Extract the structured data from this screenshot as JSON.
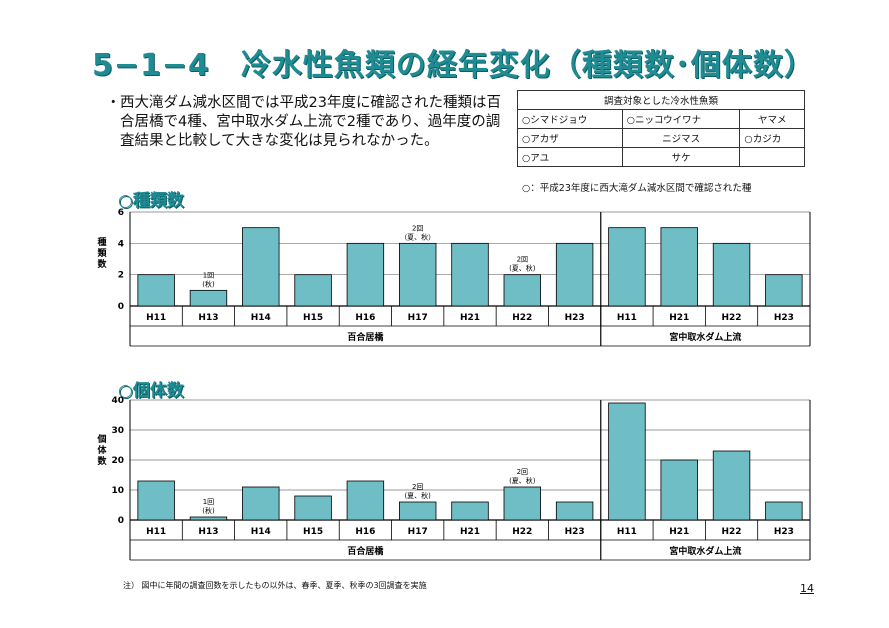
{
  "title": "5−1−4　冷水性魚類の経年変化（種類数･個体数）",
  "bullet": {
    "marker": "・",
    "text": "西大滝ダム減水区間では平成23年度に確認された種類は百合居橋で4種、宮中取水ダム上流で2種であり、過年度の調査結果と比較して大きな変化は見られなかった。"
  },
  "species_table": {
    "header": "調査対象とした冷水性魚類",
    "rows": [
      [
        "○シマドジョウ",
        "○ニッコウイワナ",
        "ヤマメ"
      ],
      [
        "○アカザ",
        "ニジマス",
        "○カジカ"
      ],
      [
        "○アユ",
        "サケ",
        ""
      ]
    ],
    "note": "○：平成23年度に西大滝ダム減水区間で確認された種"
  },
  "sections": {
    "species": "○種類数",
    "individuals": "○個体数"
  },
  "chart_data": [
    {
      "type": "bar",
      "ylabel": "種類数",
      "ylim": [
        0,
        6
      ],
      "yticks": [
        0,
        2,
        4,
        6
      ],
      "grid": true,
      "categories": [
        "H11",
        "H13",
        "H14",
        "H15",
        "H16",
        "H17",
        "H21",
        "H22",
        "H23",
        "H11",
        "H21",
        "H22",
        "H23"
      ],
      "groups": [
        {
          "label": "百合居橋",
          "count": 9
        },
        {
          "label": "宮中取水ダム上流",
          "count": 4
        }
      ],
      "values": [
        2,
        1,
        5,
        2,
        4,
        4,
        4,
        2,
        4,
        5,
        5,
        4,
        2
      ],
      "annotations": [
        {
          "index": 1,
          "lines": [
            "1回",
            "(秋)"
          ]
        },
        {
          "index": 5,
          "lines": [
            "2回",
            "（夏、秋）"
          ]
        },
        {
          "index": 7,
          "lines": [
            "2回",
            "(夏、秋)"
          ]
        }
      ],
      "bar_color": "#6fbdc5"
    },
    {
      "type": "bar",
      "ylabel": "個体数",
      "ylim": [
        0,
        40
      ],
      "yticks": [
        0,
        10,
        20,
        30,
        40
      ],
      "grid": true,
      "categories": [
        "H11",
        "H13",
        "H14",
        "H15",
        "H16",
        "H17",
        "H21",
        "H22",
        "H23",
        "H11",
        "H21",
        "H22",
        "H23"
      ],
      "groups": [
        {
          "label": "百合居橋",
          "count": 9
        },
        {
          "label": "宮中取水ダム上流",
          "count": 4
        }
      ],
      "values": [
        13,
        1,
        11,
        8,
        13,
        6,
        6,
        11,
        6,
        39,
        20,
        23,
        6
      ],
      "annotations": [
        {
          "index": 1,
          "lines": [
            "1回",
            "(秋)"
          ]
        },
        {
          "index": 5,
          "lines": [
            "2回",
            "(夏、秋)"
          ]
        },
        {
          "index": 7,
          "lines": [
            "2回",
            "(夏、秋)"
          ]
        }
      ],
      "bar_color": "#6fbdc5"
    }
  ],
  "footnote": "注） 図中に年間の調査回数を示したもの以外は、春季、夏季、秋季の3回調査を実施",
  "page_number": "14"
}
